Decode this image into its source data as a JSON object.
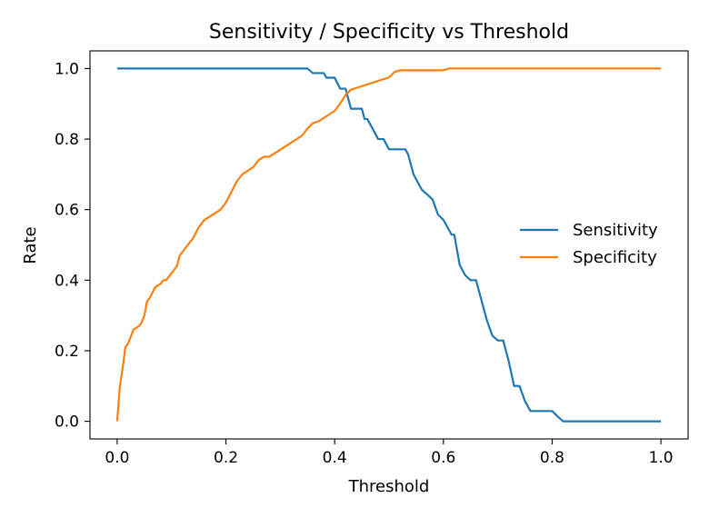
{
  "chart_data": {
    "type": "line",
    "title": "Sensitivity / Specificity vs Threshold",
    "xlabel": "Threshold",
    "ylabel": "Rate",
    "xlim": [
      -0.05,
      1.05
    ],
    "ylim": [
      -0.05,
      1.05
    ],
    "xticks": [
      0.0,
      0.2,
      0.4,
      0.6,
      0.8,
      1.0
    ],
    "xtick_labels": [
      "0.0",
      "0.2",
      "0.4",
      "0.6",
      "0.8",
      "1.0"
    ],
    "yticks": [
      0.0,
      0.2,
      0.4,
      0.6,
      0.8,
      1.0
    ],
    "ytick_labels": [
      "0.0",
      "0.2",
      "0.4",
      "0.6",
      "0.8",
      "1.0"
    ],
    "grid": false,
    "legend": "center-right",
    "series": [
      {
        "name": "Sensitivity",
        "color": "#1f77b4",
        "x": [
          0.0,
          0.35,
          0.36,
          0.38,
          0.385,
          0.4,
          0.41,
          0.42,
          0.43,
          0.45,
          0.455,
          0.46,
          0.47,
          0.48,
          0.49,
          0.5,
          0.52,
          0.53,
          0.535,
          0.545,
          0.55,
          0.56,
          0.57,
          0.58,
          0.59,
          0.6,
          0.61,
          0.615,
          0.62,
          0.63,
          0.64,
          0.65,
          0.66,
          0.67,
          0.68,
          0.69,
          0.7,
          0.71,
          0.715,
          0.72,
          0.73,
          0.74,
          0.75,
          0.76,
          0.77,
          0.8,
          0.81,
          0.82,
          0.85,
          0.9,
          1.0
        ],
        "y": [
          1.0,
          1.0,
          0.987,
          0.987,
          0.974,
          0.974,
          0.943,
          0.943,
          0.886,
          0.886,
          0.857,
          0.857,
          0.829,
          0.8,
          0.8,
          0.771,
          0.771,
          0.771,
          0.757,
          0.7,
          0.686,
          0.657,
          0.643,
          0.629,
          0.586,
          0.571,
          0.543,
          0.529,
          0.529,
          0.443,
          0.414,
          0.4,
          0.4,
          0.343,
          0.286,
          0.243,
          0.229,
          0.229,
          0.2,
          0.171,
          0.1,
          0.1,
          0.057,
          0.029,
          0.029,
          0.029,
          0.014,
          0.0,
          0.0,
          0.0,
          0.0
        ]
      },
      {
        "name": "Specificity",
        "color": "#ff7f0e",
        "x": [
          0.0,
          0.005,
          0.01,
          0.015,
          0.02,
          0.03,
          0.04,
          0.045,
          0.05,
          0.055,
          0.06,
          0.07,
          0.08,
          0.085,
          0.09,
          0.1,
          0.11,
          0.115,
          0.12,
          0.13,
          0.14,
          0.15,
          0.16,
          0.17,
          0.18,
          0.19,
          0.2,
          0.21,
          0.22,
          0.23,
          0.24,
          0.25,
          0.26,
          0.27,
          0.28,
          0.29,
          0.3,
          0.31,
          0.32,
          0.33,
          0.34,
          0.35,
          0.36,
          0.37,
          0.38,
          0.39,
          0.4,
          0.41,
          0.42,
          0.43,
          0.44,
          0.45,
          0.46,
          0.47,
          0.48,
          0.49,
          0.5,
          0.51,
          0.52,
          0.55,
          0.6,
          0.61,
          0.62,
          0.65,
          0.7,
          0.8,
          0.9,
          1.0
        ],
        "y": [
          0.0,
          0.1,
          0.15,
          0.21,
          0.22,
          0.26,
          0.27,
          0.28,
          0.3,
          0.34,
          0.35,
          0.38,
          0.39,
          0.4,
          0.4,
          0.42,
          0.44,
          0.47,
          0.48,
          0.5,
          0.52,
          0.55,
          0.57,
          0.58,
          0.59,
          0.6,
          0.62,
          0.65,
          0.68,
          0.7,
          0.71,
          0.72,
          0.74,
          0.75,
          0.75,
          0.76,
          0.77,
          0.78,
          0.79,
          0.8,
          0.81,
          0.83,
          0.845,
          0.85,
          0.86,
          0.87,
          0.88,
          0.9,
          0.925,
          0.94,
          0.945,
          0.95,
          0.955,
          0.96,
          0.965,
          0.97,
          0.975,
          0.99,
          0.995,
          0.995,
          0.995,
          1.0,
          1.0,
          1.0,
          1.0,
          1.0,
          1.0,
          1.0
        ]
      }
    ]
  }
}
